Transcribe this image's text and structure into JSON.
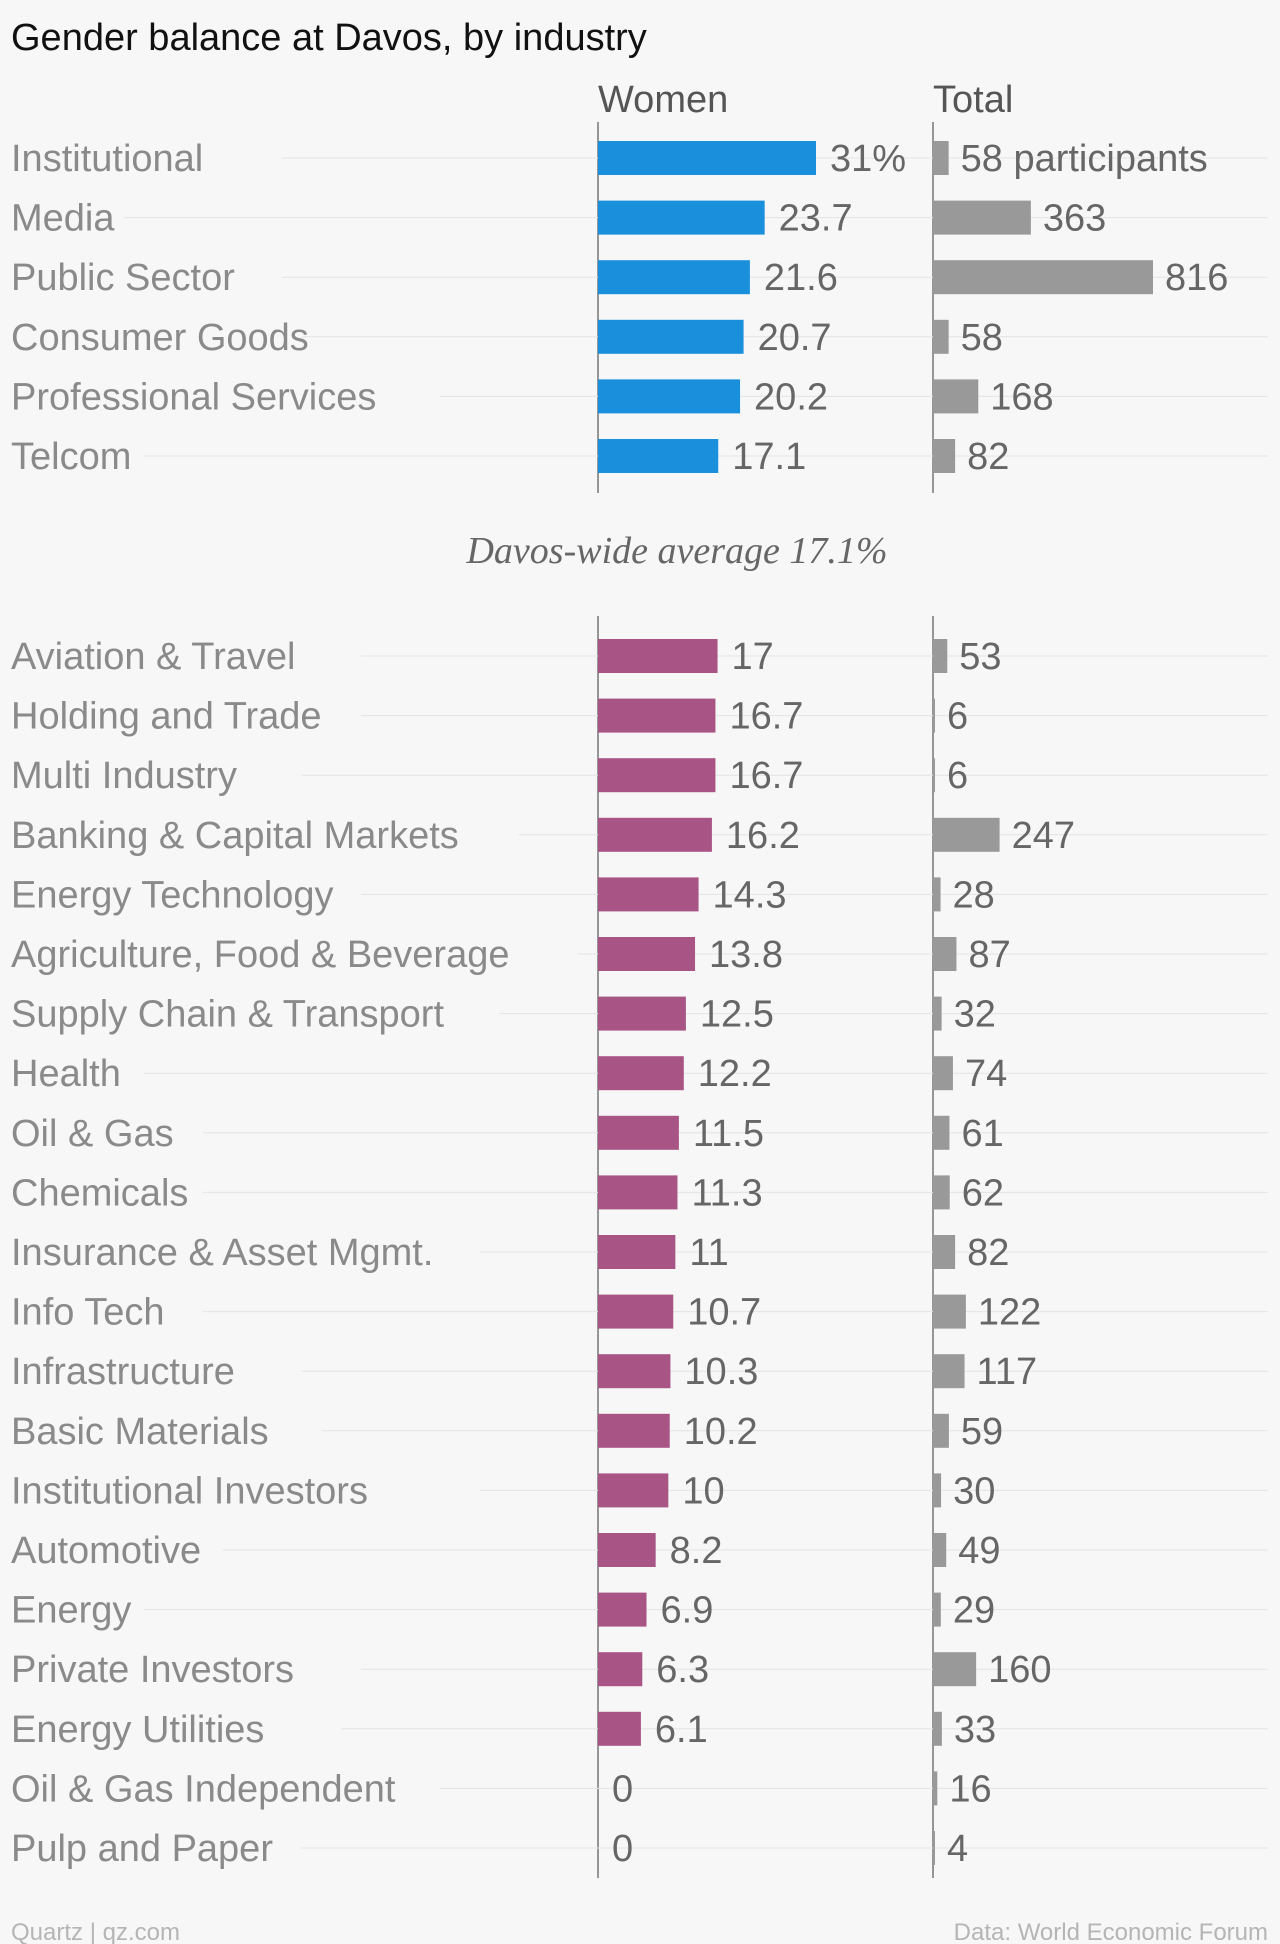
{
  "chart_data": {
    "type": "bar",
    "title": "Gender balance at Davos, by industry",
    "columns": {
      "women": "Women",
      "total": "Total"
    },
    "average_label": "Davos-wide average 17.1%",
    "total_suffix": " participants",
    "women_suffix": "%",
    "colors": {
      "above_average": "#1a8fdb",
      "below_average": "#a85485",
      "total": "#999999"
    },
    "groups": [
      {
        "name": "above",
        "categories": [
          "Institutional",
          "Media",
          "Public Sector",
          "Consumer Goods",
          "Professional Services",
          "Telcom"
        ],
        "series": [
          {
            "name": "Women",
            "values": [
              31,
              23.7,
              21.6,
              20.7,
              20.2,
              17.1
            ]
          },
          {
            "name": "Total",
            "values": [
              58,
              363,
              816,
              58,
              168,
              82
            ]
          }
        ]
      },
      {
        "name": "below",
        "categories": [
          "Aviation & Travel",
          "Holding and Trade",
          "Multi Industry",
          "Banking & Capital Markets",
          "Energy Technology",
          "Agriculture, Food & Beverage",
          "Supply Chain & Transport",
          "Health",
          "Oil & Gas",
          "Chemicals",
          "Insurance & Asset Mgmt.",
          "Info Tech",
          "Infrastructure",
          "Basic Materials",
          "Institutional Investors",
          "Automotive",
          "Energy",
          "Private Investors",
          "Energy Utilities",
          "Oil & Gas Independent",
          "Pulp and Paper"
        ],
        "series": [
          {
            "name": "Women",
            "values": [
              17,
              16.7,
              16.7,
              16.2,
              14.3,
              13.8,
              12.5,
              12.2,
              11.5,
              11.3,
              11,
              10.7,
              10.3,
              10.2,
              10,
              8.2,
              6.9,
              6.3,
              6.1,
              0,
              0
            ]
          },
          {
            "name": "Total",
            "values": [
              53,
              6,
              6,
              247,
              28,
              87,
              32,
              74,
              61,
              62,
              82,
              122,
              117,
              59,
              30,
              49,
              29,
              160,
              33,
              16,
              4
            ]
          }
        ]
      }
    ]
  },
  "footer": {
    "source_left": "Quartz | qz.com",
    "source_right": "Data: World Economic Forum"
  }
}
